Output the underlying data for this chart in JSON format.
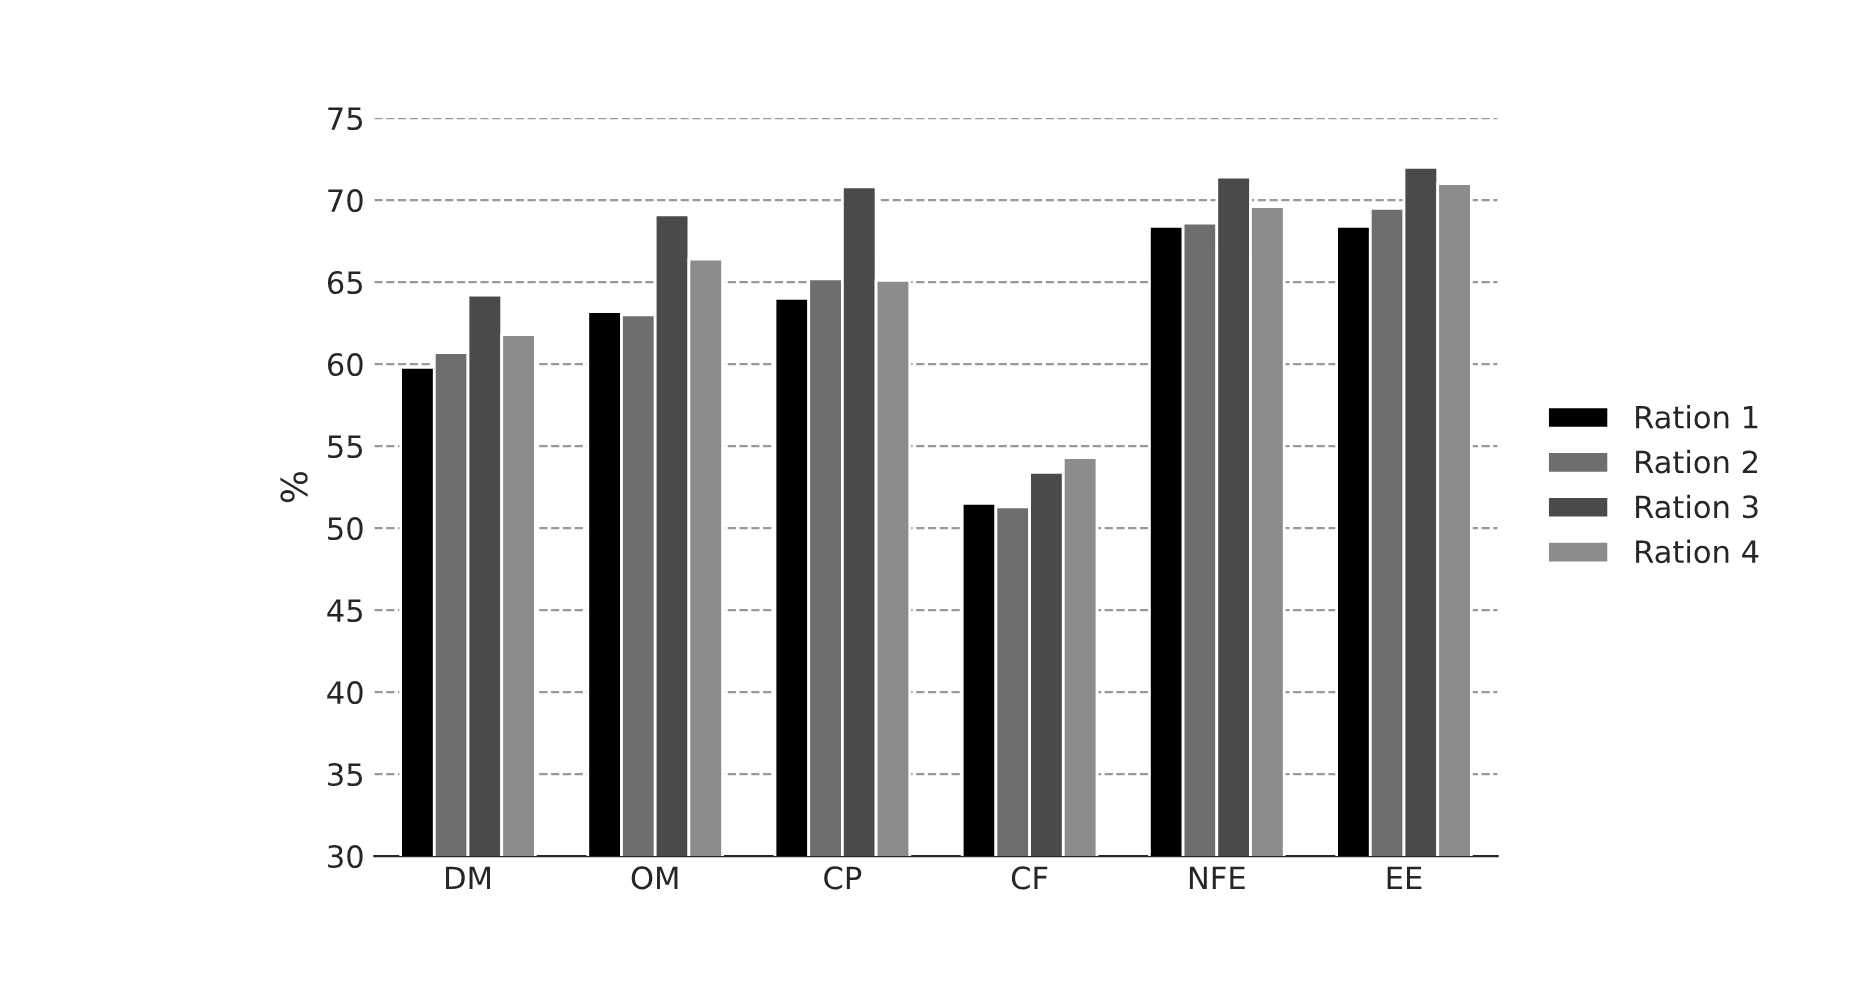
{
  "chart_data": {
    "type": "bar",
    "ylabel": "%",
    "categories": [
      "DM",
      "OM",
      "CP",
      "CF",
      "NFE",
      "EE"
    ],
    "series": [
      {
        "name": "Ration 1",
        "color": "#000000",
        "values": [
          59.8,
          63.2,
          64.0,
          51.5,
          68.4,
          68.4
        ]
      },
      {
        "name": "Ration 2",
        "color": "#6e6e6e",
        "values": [
          60.7,
          63.0,
          65.2,
          51.3,
          68.6,
          69.5
        ]
      },
      {
        "name": "Ration 3",
        "color": "#4a4a4a",
        "values": [
          64.2,
          69.1,
          70.8,
          53.4,
          71.4,
          72.0
        ]
      },
      {
        "name": "Ration 4",
        "color": "#8c8c8c",
        "values": [
          61.8,
          66.4,
          65.1,
          54.3,
          69.6,
          71.0
        ]
      }
    ],
    "ylim": [
      30,
      75
    ],
    "yticks": [
      30,
      35,
      40,
      45,
      50,
      55,
      60,
      65,
      70,
      75
    ],
    "grid": "y",
    "legend": "right"
  }
}
